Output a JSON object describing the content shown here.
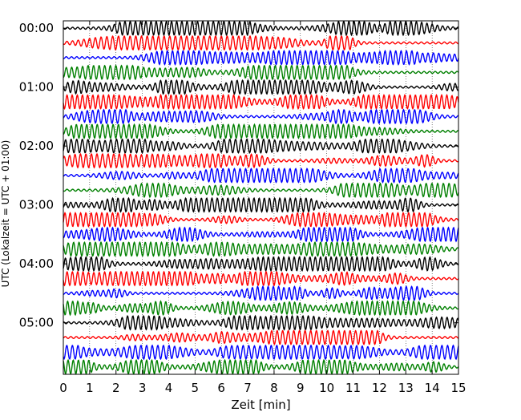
{
  "chart_data": {
    "type": "line",
    "xlabel": "Zeit  [min]",
    "ylabel": "UTC (Lokalzeit = UTC + 01:00)",
    "xlim": [
      0,
      15
    ],
    "x_ticks": [
      "0",
      "1",
      "2",
      "3",
      "4",
      "5",
      "6",
      "7",
      "8",
      "9",
      "10",
      "11",
      "12",
      "13",
      "14",
      "15"
    ],
    "y_ticks": [
      "00:00",
      "01:00",
      "02:00",
      "03:00",
      "04:00",
      "05:00"
    ],
    "trace_count": 24,
    "trace_interval_minutes": 15,
    "trace_colors": [
      "#000000",
      "#ff0000",
      "#0000ff",
      "#008000"
    ],
    "grid": "vertical dotted lines at each minute",
    "legend": "none"
  }
}
